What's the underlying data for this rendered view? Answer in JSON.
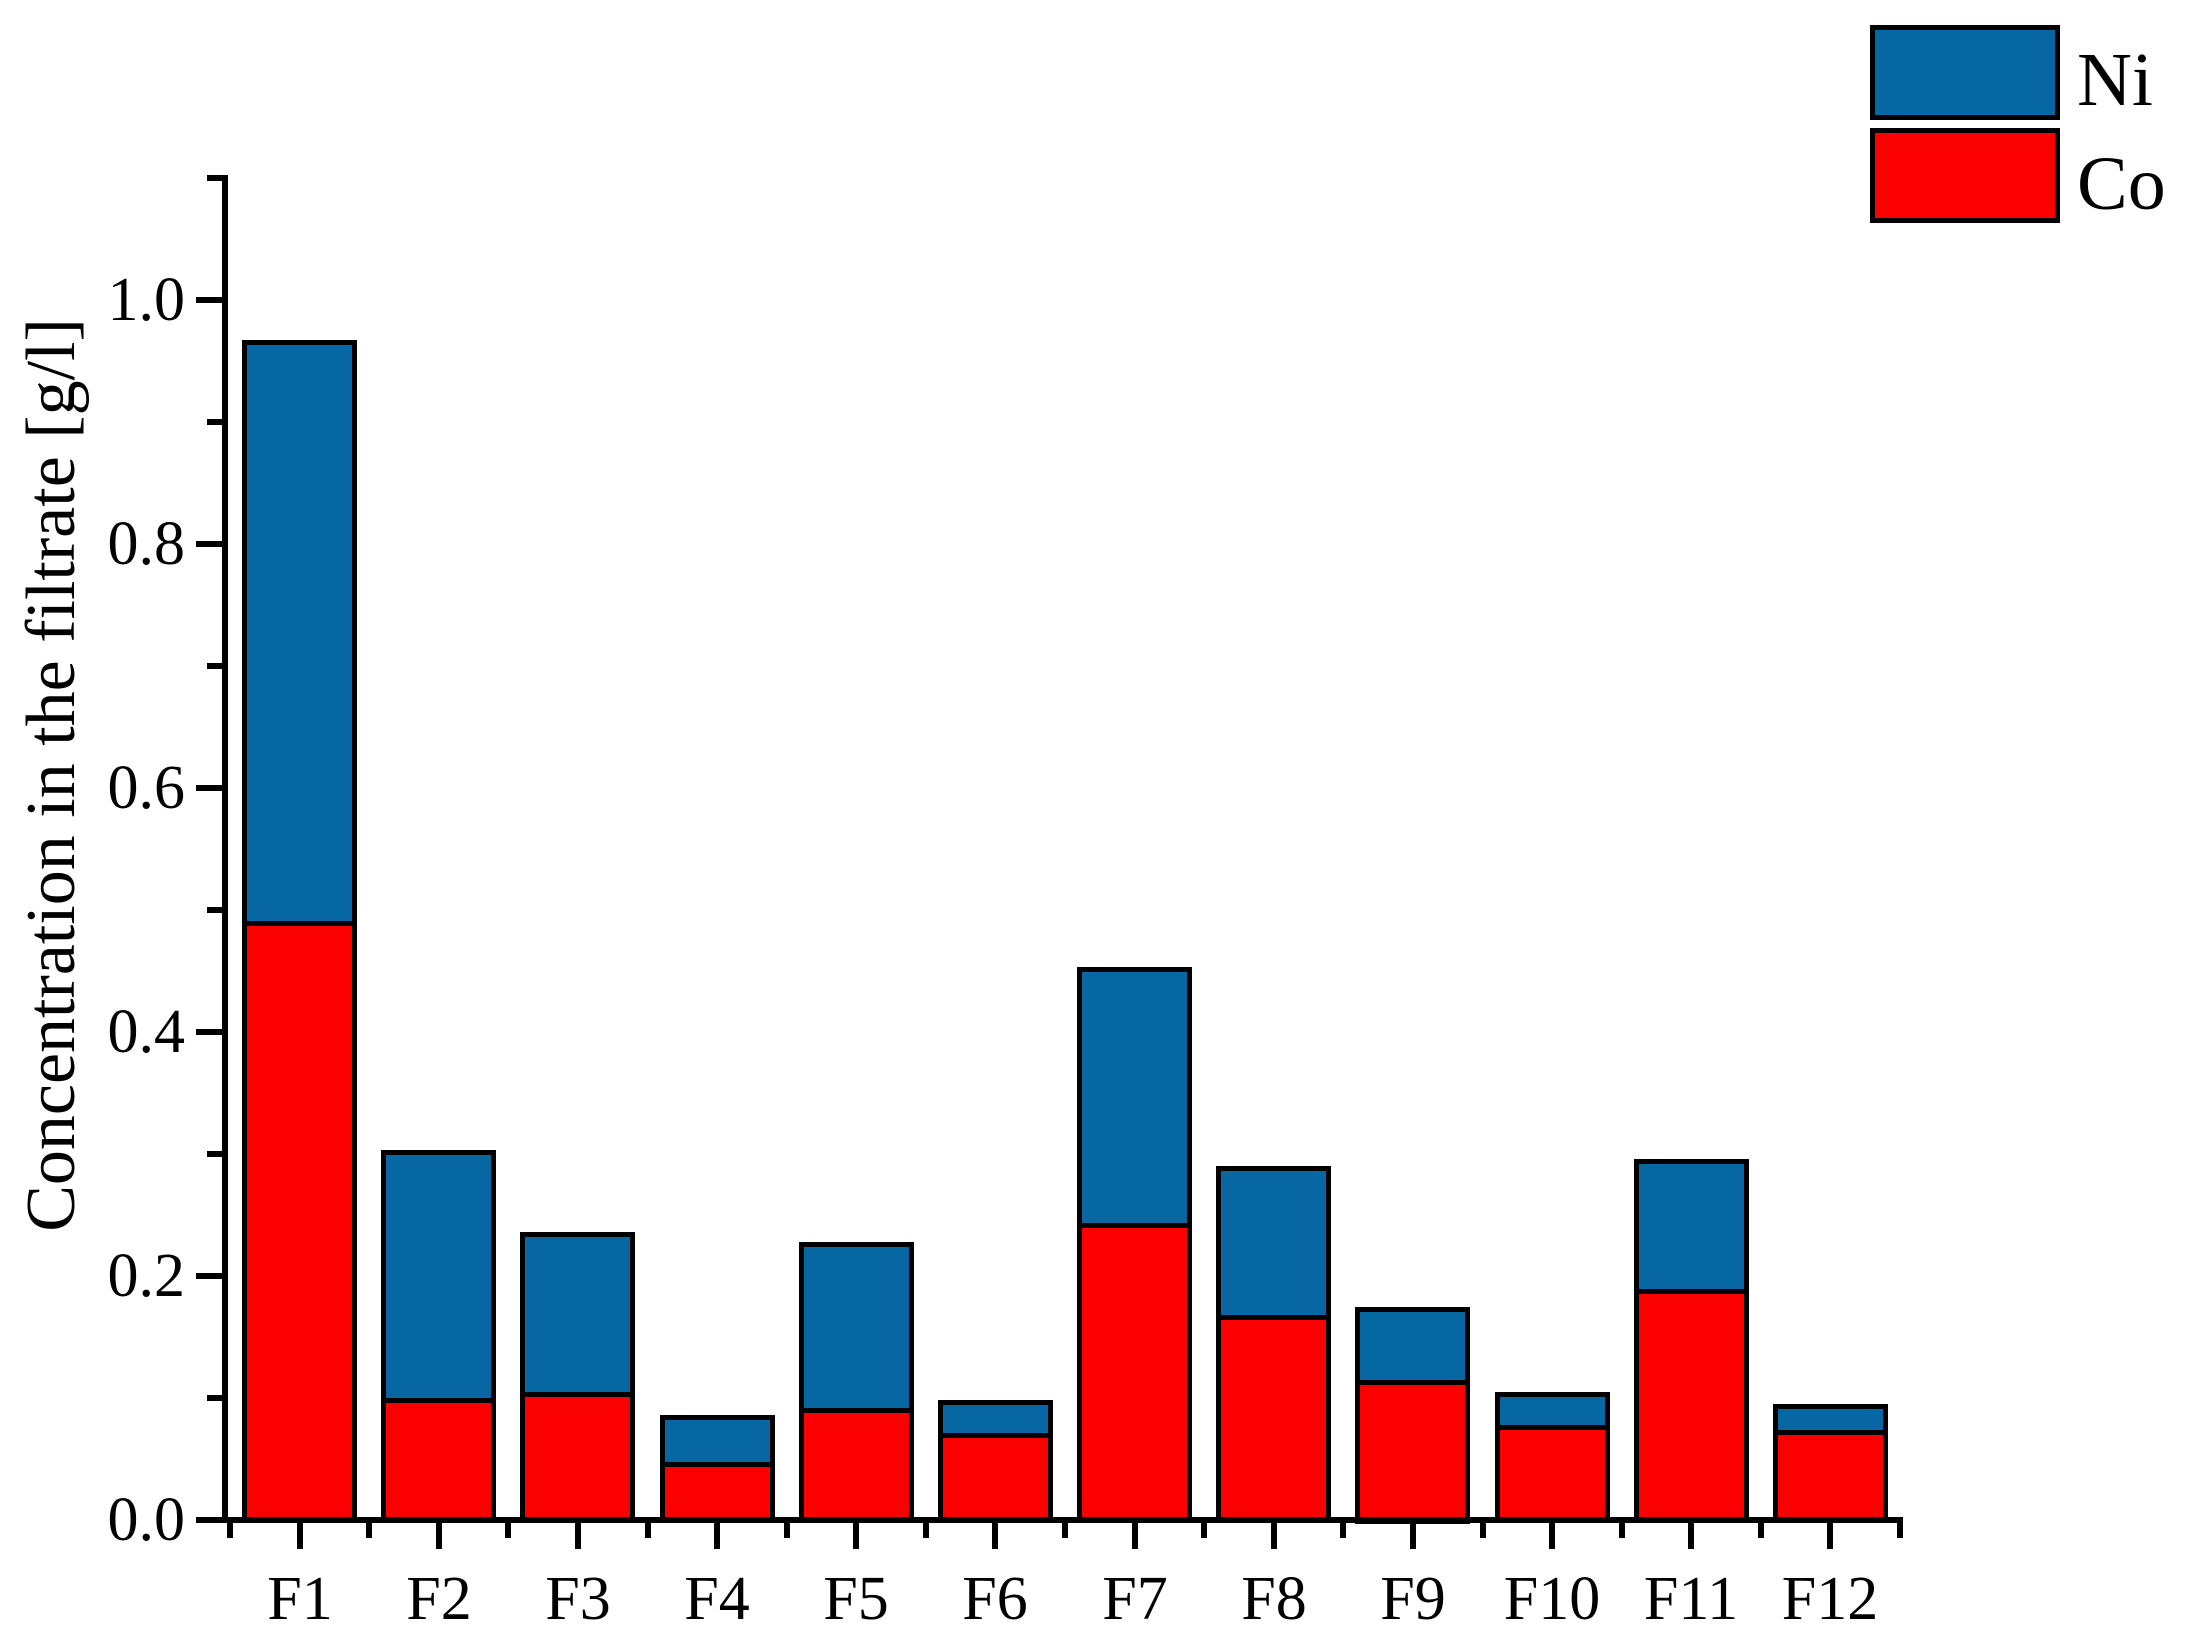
{
  "figure": {
    "background_color": "#ffffff",
    "axis_color": "#000000"
  },
  "legend": {
    "position": "top-right",
    "items": [
      {
        "label": "Ni",
        "color": "#0767a3"
      },
      {
        "label": "Co",
        "color": "#fa0000"
      }
    ]
  },
  "chart_data": {
    "type": "bar",
    "stacked": true,
    "title": "",
    "xlabel": "",
    "ylabel": "Concentration in the filtrate [g/l]",
    "categories": [
      "F1",
      "F2",
      "F3",
      "F4",
      "F5",
      "F6",
      "F7",
      "F8",
      "F9",
      "F10",
      "F11",
      "F12"
    ],
    "series": [
      {
        "name": "Co",
        "color": "#fa0000",
        "values": [
          0.487,
          0.096,
          0.101,
          0.043,
          0.088,
          0.067,
          0.239,
          0.164,
          0.111,
          0.074,
          0.185,
          0.07
        ]
      },
      {
        "name": "Ni",
        "color": "#0767a3",
        "values": [
          0.48,
          0.207,
          0.135,
          0.043,
          0.14,
          0.031,
          0.214,
          0.126,
          0.064,
          0.031,
          0.111,
          0.025
        ]
      }
    ],
    "stack_totals": [
      0.967,
      0.303,
      0.236,
      0.086,
      0.228,
      0.098,
      0.453,
      0.29,
      0.175,
      0.105,
      0.296,
      0.095
    ],
    "ylim": [
      0,
      1.1
    ],
    "ytick_labels": [
      "0.0",
      "0.2",
      "0.4",
      "0.6",
      "0.8",
      "1.0"
    ],
    "yticks_major": [
      0.0,
      0.2,
      0.4,
      0.6,
      0.8,
      1.0
    ],
    "ytick_minor_step": 0.1,
    "grid": false,
    "legend_entries": [
      "Ni",
      "Co"
    ]
  }
}
